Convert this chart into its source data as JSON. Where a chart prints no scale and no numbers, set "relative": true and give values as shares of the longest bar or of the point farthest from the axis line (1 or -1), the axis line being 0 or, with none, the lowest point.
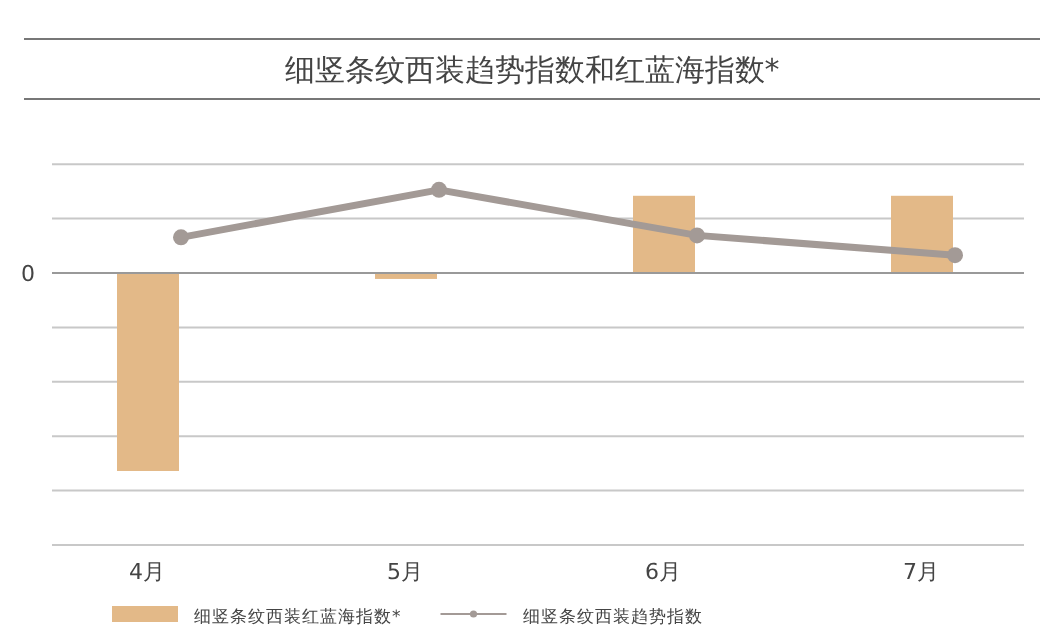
{
  "chart_data": {
    "type": "bar",
    "title": "细竖条纹西装趋势指数和红蓝海指数*",
    "relative": true,
    "grid": "y",
    "legend": "bottom",
    "annotations": [
      "0"
    ],
    "categories": [
      "4月",
      "5月",
      "6月",
      "7月"
    ],
    "series": [
      {
        "name": "细竖条纹西装红蓝海指数*",
        "color": "#e3b988",
        "values": [
          -1,
          -0.03,
          0.39,
          0.39
        ]
      },
      {
        "name": "细竖条纹西装趋势指数",
        "type": "line",
        "color": "#a39a96",
        "marker": "circle",
        "values": [
          0.18,
          0.42,
          0.19,
          0.09
        ]
      }
    ]
  }
}
